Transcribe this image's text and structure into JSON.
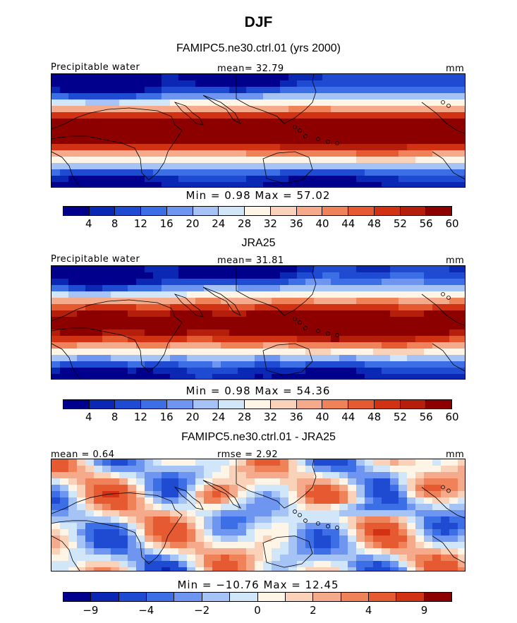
{
  "title": "DJF",
  "panels": [
    {
      "subtitle": "FAMIPC5.ne30.ctrl.01 (yrs 2000)",
      "left_label": "Precipitable water",
      "center_label": "mean=  32.79",
      "units": "mm",
      "stats": "Min =    0.98 Max =   57.02",
      "field": "model"
    },
    {
      "subtitle": "JRA25",
      "left_label": "Precipitable water",
      "center_label": "mean=  31.81",
      "units": "mm",
      "stats": "Min =    0.98 Max =   54.36",
      "field": "obs"
    },
    {
      "subtitle": "FAMIPC5.ne30.ctrl.01 - JRA25",
      "left_label": "mean =   0.64",
      "center_label": "rmse =   2.92",
      "units": "mm",
      "stats": "Min = −10.76 Max =  12.45",
      "field": "diff"
    }
  ],
  "colorbar_abs": {
    "colors": [
      "#00008c",
      "#0a28b4",
      "#1e4bd2",
      "#3c6ee6",
      "#6e96f0",
      "#a5c3f5",
      "#d2e6fa",
      "#fff5e6",
      "#fad2b9",
      "#f5aa8c",
      "#f0825a",
      "#e65a32",
      "#d23214",
      "#b41e0a",
      "#8c0000"
    ],
    "ticks": [
      "4",
      "8",
      "12",
      "16",
      "20",
      "24",
      "28",
      "32",
      "36",
      "40",
      "44",
      "48",
      "52",
      "56",
      "60"
    ]
  },
  "colorbar_diff": {
    "colors": [
      "#00008c",
      "#0a28b4",
      "#1e4bd2",
      "#3c6ee6",
      "#6e96f0",
      "#a5c3f5",
      "#d2e6fa",
      "#fff5e6",
      "#fad2b9",
      "#f5aa8c",
      "#f0825a",
      "#e65a32",
      "#d23214",
      "#8c0000"
    ],
    "ticks": [
      "−9",
      "−4",
      "−2",
      "0",
      "2",
      "4",
      "9"
    ]
  }
}
